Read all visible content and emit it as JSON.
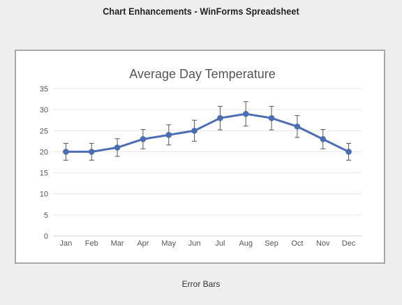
{
  "page": {
    "title": "Chart Enhancements - WinForms Spreadsheet",
    "caption": "Error Bars"
  },
  "chart_data": {
    "type": "line",
    "title": "Average Day Temperature",
    "xlabel": "",
    "ylabel": "",
    "categories": [
      "Jan",
      "Feb",
      "Mar",
      "Apr",
      "May",
      "Jun",
      "Jul",
      "Aug",
      "Sep",
      "Oct",
      "Nov",
      "Dec"
    ],
    "series": [
      {
        "values": [
          20,
          20,
          21,
          23,
          24,
          25,
          28,
          29,
          28,
          26,
          23,
          20
        ],
        "error_bar": 10,
        "error_bar_unit": "percent",
        "color": "#4a6db5"
      }
    ],
    "ylim": [
      0,
      35
    ],
    "yticks": [
      0,
      5,
      10,
      15,
      20,
      25,
      30,
      35
    ],
    "grid": true,
    "legend": "none",
    "markers": true
  }
}
